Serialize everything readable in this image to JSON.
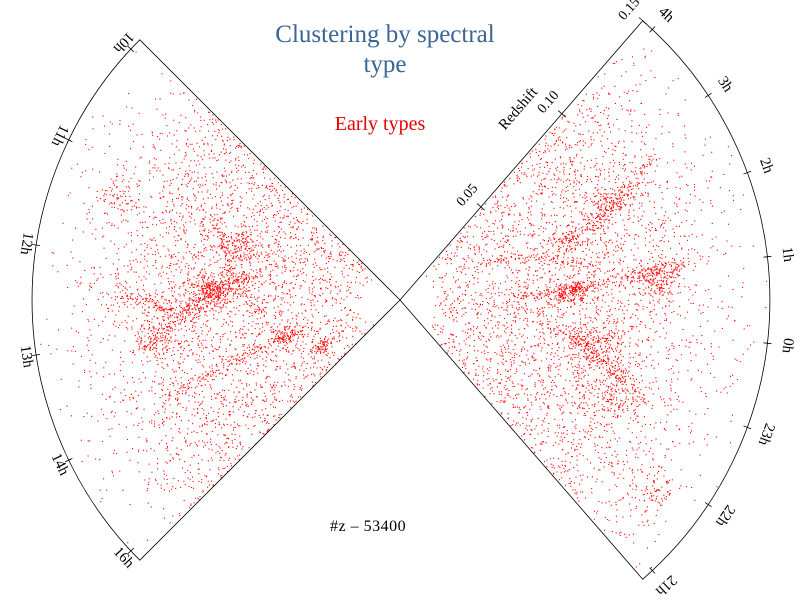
{
  "figure": {
    "title_lines": [
      "Clustering by spectral",
      "type"
    ],
    "subtitle": "Early types",
    "caption": "#z – 53400",
    "point_color": "#ff0000",
    "title_color": "#3a6596"
  },
  "right_wedge": {
    "ra_labels": [
      "4h",
      "3h",
      "2h",
      "1h",
      "0h",
      "23h",
      "22h",
      "21h"
    ],
    "redshift_axis_label": "Redshift",
    "redshift_ticks": [
      "0.05",
      "0.10",
      "0.15"
    ]
  },
  "left_wedge": {
    "ra_labels": [
      "10h",
      "11h",
      "12h",
      "13h",
      "14h",
      "16h"
    ]
  }
}
